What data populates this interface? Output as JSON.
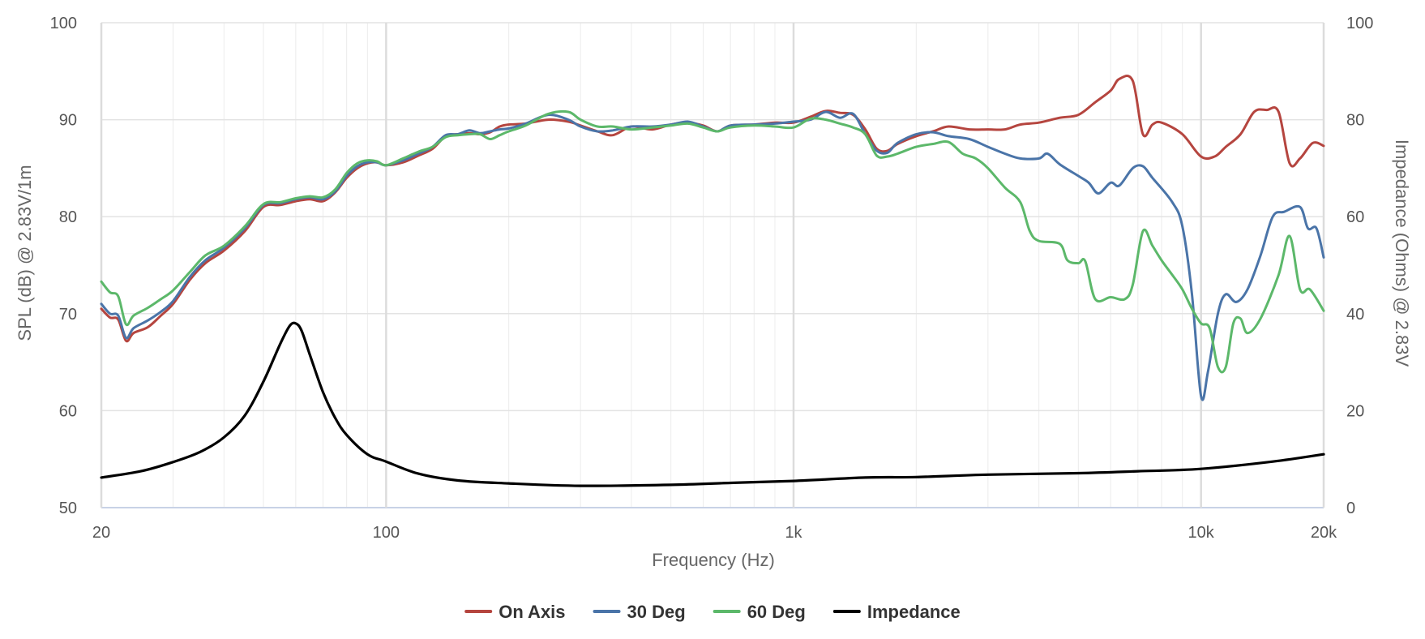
{
  "chart_data": {
    "type": "line",
    "title": "",
    "xlabel": "Frequency (Hz)",
    "ylabel_left": "SPL (dB) @ 2.83V/1m",
    "ylabel_right": "Impedance (Ohms) @ 2.83V",
    "x_scale": "log",
    "xlim": [
      20,
      20000
    ],
    "ylim_left": [
      50,
      100
    ],
    "ylim_right": [
      0,
      100
    ],
    "x_ticks": [
      {
        "value": 20,
        "label": "20"
      },
      {
        "value": 100,
        "label": "100"
      },
      {
        "value": 1000,
        "label": "1k"
      },
      {
        "value": 10000,
        "label": "10k"
      },
      {
        "value": 20000,
        "label": "20k"
      }
    ],
    "y_ticks_left": [
      "50",
      "60",
      "70",
      "80",
      "90",
      "100"
    ],
    "y_ticks_right": [
      "0",
      "20",
      "40",
      "60",
      "80",
      "100"
    ],
    "grid": true,
    "legend_position": "bottom-center",
    "series": [
      {
        "name": "On Axis",
        "axis": "left",
        "color": "#b5453f",
        "points": [
          [
            20,
            70.5
          ],
          [
            21,
            69.6
          ],
          [
            22,
            69.4
          ],
          [
            23,
            67.2
          ],
          [
            24,
            68.0
          ],
          [
            26,
            68.6
          ],
          [
            28,
            69.8
          ],
          [
            30,
            71.0
          ],
          [
            33,
            73.5
          ],
          [
            36,
            75.2
          ],
          [
            40,
            76.5
          ],
          [
            45,
            78.5
          ],
          [
            50,
            81.0
          ],
          [
            55,
            81.2
          ],
          [
            60,
            81.6
          ],
          [
            65,
            81.8
          ],
          [
            70,
            81.6
          ],
          [
            75,
            82.5
          ],
          [
            80,
            84.0
          ],
          [
            85,
            85.0
          ],
          [
            90,
            85.5
          ],
          [
            95,
            85.6
          ],
          [
            100,
            85.3
          ],
          [
            110,
            85.6
          ],
          [
            120,
            86.3
          ],
          [
            130,
            87.0
          ],
          [
            140,
            88.3
          ],
          [
            150,
            88.5
          ],
          [
            160,
            88.6
          ],
          [
            170,
            88.5
          ],
          [
            180,
            88.7
          ],
          [
            190,
            89.3
          ],
          [
            200,
            89.5
          ],
          [
            220,
            89.6
          ],
          [
            250,
            90.0
          ],
          [
            280,
            89.8
          ],
          [
            300,
            89.4
          ],
          [
            330,
            88.8
          ],
          [
            360,
            88.4
          ],
          [
            400,
            89.3
          ],
          [
            450,
            89.0
          ],
          [
            500,
            89.5
          ],
          [
            550,
            89.7
          ],
          [
            600,
            89.4
          ],
          [
            650,
            88.8
          ],
          [
            700,
            89.4
          ],
          [
            800,
            89.5
          ],
          [
            900,
            89.7
          ],
          [
            1000,
            89.7
          ],
          [
            1100,
            90.3
          ],
          [
            1200,
            90.9
          ],
          [
            1300,
            90.7
          ],
          [
            1400,
            90.5
          ],
          [
            1500,
            89.0
          ],
          [
            1600,
            87.0
          ],
          [
            1700,
            86.8
          ],
          [
            1800,
            87.5
          ],
          [
            2000,
            88.3
          ],
          [
            2200,
            88.8
          ],
          [
            2400,
            89.3
          ],
          [
            2700,
            89.0
          ],
          [
            3000,
            89.0
          ],
          [
            3300,
            89.0
          ],
          [
            3600,
            89.5
          ],
          [
            4000,
            89.7
          ],
          [
            4500,
            90.2
          ],
          [
            5000,
            90.5
          ],
          [
            5500,
            91.8
          ],
          [
            6000,
            93.0
          ],
          [
            6300,
            94.2
          ],
          [
            6800,
            94.0
          ],
          [
            7200,
            88.5
          ],
          [
            7600,
            89.5
          ],
          [
            8000,
            89.7
          ],
          [
            9000,
            88.5
          ],
          [
            10000,
            86.2
          ],
          [
            10800,
            86.2
          ],
          [
            11500,
            87.2
          ],
          [
            12500,
            88.5
          ],
          [
            13500,
            90.8
          ],
          [
            14500,
            91.0
          ],
          [
            15500,
            90.8
          ],
          [
            16500,
            85.5
          ],
          [
            17500,
            86.0
          ],
          [
            18800,
            87.6
          ],
          [
            20000,
            87.3
          ]
        ]
      },
      {
        "name": "30 Deg",
        "axis": "left",
        "color": "#4a74a8",
        "points": [
          [
            20,
            71.0
          ],
          [
            21,
            70.0
          ],
          [
            22,
            69.8
          ],
          [
            23,
            67.5
          ],
          [
            24,
            68.5
          ],
          [
            26,
            69.3
          ],
          [
            28,
            70.2
          ],
          [
            30,
            71.3
          ],
          [
            33,
            73.8
          ],
          [
            36,
            75.5
          ],
          [
            40,
            76.8
          ],
          [
            45,
            78.8
          ],
          [
            50,
            81.2
          ],
          [
            55,
            81.4
          ],
          [
            60,
            81.8
          ],
          [
            65,
            82.0
          ],
          [
            70,
            81.8
          ],
          [
            75,
            82.6
          ],
          [
            80,
            84.2
          ],
          [
            85,
            85.2
          ],
          [
            90,
            85.6
          ],
          [
            95,
            85.6
          ],
          [
            100,
            85.3
          ],
          [
            110,
            85.8
          ],
          [
            120,
            86.5
          ],
          [
            130,
            87.2
          ],
          [
            140,
            88.4
          ],
          [
            150,
            88.5
          ],
          [
            160,
            88.9
          ],
          [
            170,
            88.6
          ],
          [
            180,
            88.8
          ],
          [
            190,
            89.0
          ],
          [
            200,
            89.1
          ],
          [
            220,
            89.6
          ],
          [
            250,
            90.5
          ],
          [
            280,
            90.0
          ],
          [
            300,
            89.3
          ],
          [
            330,
            88.8
          ],
          [
            360,
            88.9
          ],
          [
            400,
            89.3
          ],
          [
            450,
            89.3
          ],
          [
            500,
            89.5
          ],
          [
            550,
            89.8
          ],
          [
            600,
            89.3
          ],
          [
            650,
            88.8
          ],
          [
            700,
            89.4
          ],
          [
            800,
            89.5
          ],
          [
            900,
            89.6
          ],
          [
            1000,
            89.8
          ],
          [
            1100,
            90.0
          ],
          [
            1200,
            90.8
          ],
          [
            1300,
            90.2
          ],
          [
            1400,
            90.6
          ],
          [
            1500,
            88.5
          ],
          [
            1600,
            86.8
          ],
          [
            1700,
            86.6
          ],
          [
            1800,
            87.6
          ],
          [
            2000,
            88.5
          ],
          [
            2200,
            88.7
          ],
          [
            2400,
            88.3
          ],
          [
            2700,
            88.0
          ],
          [
            3000,
            87.2
          ],
          [
            3300,
            86.5
          ],
          [
            3600,
            86.0
          ],
          [
            4000,
            86.0
          ],
          [
            4200,
            86.5
          ],
          [
            4500,
            85.4
          ],
          [
            5000,
            84.2
          ],
          [
            5300,
            83.5
          ],
          [
            5600,
            82.4
          ],
          [
            6000,
            83.5
          ],
          [
            6300,
            83.2
          ],
          [
            6800,
            85.0
          ],
          [
            7200,
            85.2
          ],
          [
            7600,
            84.0
          ],
          [
            8500,
            81.5
          ],
          [
            9000,
            79.0
          ],
          [
            9500,
            72.0
          ],
          [
            10000,
            61.5
          ],
          [
            10400,
            64.0
          ],
          [
            11000,
            70.0
          ],
          [
            11500,
            72.0
          ],
          [
            12200,
            71.2
          ],
          [
            13000,
            72.5
          ],
          [
            14000,
            76.0
          ],
          [
            15000,
            80.0
          ],
          [
            16000,
            80.5
          ],
          [
            17500,
            81.0
          ],
          [
            18300,
            78.8
          ],
          [
            19200,
            78.8
          ],
          [
            20000,
            75.8
          ]
        ]
      },
      {
        "name": "60 Deg",
        "axis": "left",
        "color": "#5cb86a",
        "points": [
          [
            20,
            73.3
          ],
          [
            21,
            72.2
          ],
          [
            22,
            71.8
          ],
          [
            23,
            68.9
          ],
          [
            24,
            69.8
          ],
          [
            26,
            70.6
          ],
          [
            28,
            71.5
          ],
          [
            30,
            72.4
          ],
          [
            33,
            74.3
          ],
          [
            36,
            76.0
          ],
          [
            40,
            77.0
          ],
          [
            45,
            79.0
          ],
          [
            50,
            81.3
          ],
          [
            55,
            81.5
          ],
          [
            60,
            81.9
          ],
          [
            65,
            82.1
          ],
          [
            70,
            82.0
          ],
          [
            75,
            82.8
          ],
          [
            80,
            84.5
          ],
          [
            85,
            85.5
          ],
          [
            90,
            85.8
          ],
          [
            95,
            85.7
          ],
          [
            100,
            85.3
          ],
          [
            110,
            86.0
          ],
          [
            120,
            86.7
          ],
          [
            130,
            87.2
          ],
          [
            140,
            88.2
          ],
          [
            150,
            88.4
          ],
          [
            160,
            88.5
          ],
          [
            170,
            88.5
          ],
          [
            180,
            88.0
          ],
          [
            190,
            88.4
          ],
          [
            200,
            88.8
          ],
          [
            220,
            89.4
          ],
          [
            250,
            90.6
          ],
          [
            280,
            90.8
          ],
          [
            300,
            90.0
          ],
          [
            330,
            89.3
          ],
          [
            360,
            89.3
          ],
          [
            400,
            89.0
          ],
          [
            450,
            89.2
          ],
          [
            500,
            89.4
          ],
          [
            550,
            89.6
          ],
          [
            600,
            89.2
          ],
          [
            650,
            88.8
          ],
          [
            700,
            89.2
          ],
          [
            800,
            89.4
          ],
          [
            900,
            89.3
          ],
          [
            1000,
            89.2
          ],
          [
            1100,
            90.1
          ],
          [
            1200,
            90.0
          ],
          [
            1300,
            89.6
          ],
          [
            1400,
            89.2
          ],
          [
            1500,
            88.5
          ],
          [
            1600,
            86.3
          ],
          [
            1700,
            86.2
          ],
          [
            1800,
            86.5
          ],
          [
            2000,
            87.2
          ],
          [
            2200,
            87.5
          ],
          [
            2400,
            87.7
          ],
          [
            2600,
            86.5
          ],
          [
            2800,
            86.0
          ],
          [
            3000,
            85.0
          ],
          [
            3300,
            83.0
          ],
          [
            3600,
            81.5
          ],
          [
            3800,
            78.5
          ],
          [
            4000,
            77.5
          ],
          [
            4500,
            77.2
          ],
          [
            4700,
            75.5
          ],
          [
            5000,
            75.2
          ],
          [
            5200,
            75.4
          ],
          [
            5500,
            71.5
          ],
          [
            6000,
            71.7
          ],
          [
            6500,
            71.5
          ],
          [
            6800,
            73.0
          ],
          [
            7200,
            78.5
          ],
          [
            7600,
            77.0
          ],
          [
            8000,
            75.5
          ],
          [
            8500,
            74.0
          ],
          [
            9000,
            72.5
          ],
          [
            9500,
            70.5
          ],
          [
            10000,
            69.0
          ],
          [
            10500,
            68.5
          ],
          [
            11000,
            64.5
          ],
          [
            11500,
            64.5
          ],
          [
            12000,
            69.0
          ],
          [
            12500,
            69.5
          ],
          [
            13000,
            68.0
          ],
          [
            14000,
            69.5
          ],
          [
            15500,
            74.0
          ],
          [
            16500,
            78.0
          ],
          [
            17500,
            72.5
          ],
          [
            18500,
            72.5
          ],
          [
            20000,
            70.3
          ]
        ]
      },
      {
        "name": "Impedance",
        "axis": "right",
        "color": "#000000",
        "points": [
          [
            20,
            6.2
          ],
          [
            25,
            7.5
          ],
          [
            30,
            9.4
          ],
          [
            35,
            11.5
          ],
          [
            40,
            14.5
          ],
          [
            45,
            19.0
          ],
          [
            50,
            26.0
          ],
          [
            55,
            33.8
          ],
          [
            58,
            37.5
          ],
          [
            60,
            38.0
          ],
          [
            62,
            36.5
          ],
          [
            65,
            31.5
          ],
          [
            70,
            23.8
          ],
          [
            75,
            18.5
          ],
          [
            80,
            15.0
          ],
          [
            90,
            11.0
          ],
          [
            100,
            9.5
          ],
          [
            120,
            7.0
          ],
          [
            150,
            5.6
          ],
          [
            200,
            5.0
          ],
          [
            300,
            4.5
          ],
          [
            500,
            4.7
          ],
          [
            700,
            5.1
          ],
          [
            1000,
            5.5
          ],
          [
            1500,
            6.2
          ],
          [
            2000,
            6.3
          ],
          [
            3000,
            6.8
          ],
          [
            5000,
            7.1
          ],
          [
            7000,
            7.5
          ],
          [
            10000,
            8.0
          ],
          [
            15000,
            9.5
          ],
          [
            20000,
            11.0
          ]
        ]
      }
    ]
  }
}
